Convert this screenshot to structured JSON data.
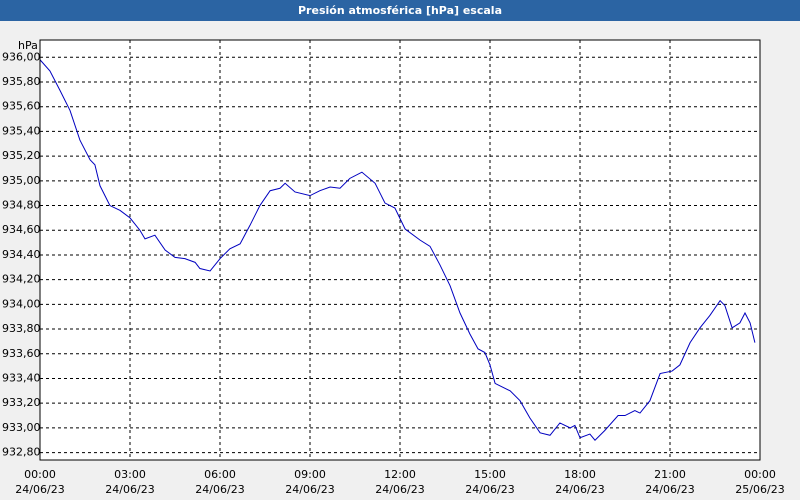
{
  "chart_data": {
    "type": "line",
    "title": "Presión atmosférica [hPa] escala",
    "y_unit": "hPa",
    "x": [
      0,
      0.33,
      0.67,
      1,
      1.33,
      1.67,
      1.83,
      2,
      2.33,
      2.67,
      3,
      3.33,
      3.5,
      3.83,
      4.17,
      4.5,
      4.83,
      5.17,
      5.33,
      5.67,
      6,
      6.33,
      6.67,
      7,
      7.33,
      7.67,
      8,
      8.17,
      8.5,
      9,
      9.33,
      9.67,
      10,
      10.33,
      10.73,
      11.17,
      11.5,
      11.83,
      12.17,
      12.67,
      13,
      13.33,
      13.67,
      14,
      14.33,
      14.6,
      14.83,
      15,
      15.17,
      15.67,
      16,
      16.33,
      16.67,
      17,
      17.33,
      17.67,
      17.83,
      18,
      18.33,
      18.5,
      18.83,
      19.27,
      19.5,
      19.83,
      20,
      20.33,
      20.67,
      21.07,
      21.33,
      21.67,
      22,
      22.33,
      22.67,
      22.83,
      23.07,
      23.33,
      23.5,
      23.67,
      23.83
    ],
    "series": [
      {
        "color": "#0000c0",
        "values": [
          935.98,
          935.89,
          935.73,
          935.57,
          935.33,
          935.17,
          935.13,
          934.96,
          934.8,
          934.76,
          934.7,
          934.6,
          934.53,
          934.56,
          934.44,
          934.38,
          934.37,
          934.34,
          934.29,
          934.27,
          934.37,
          934.45,
          934.49,
          934.64,
          934.8,
          934.92,
          934.94,
          934.98,
          934.91,
          934.88,
          934.92,
          934.95,
          934.94,
          935.02,
          935.07,
          934.98,
          934.82,
          934.78,
          934.61,
          934.52,
          934.47,
          934.32,
          934.15,
          933.93,
          933.76,
          933.64,
          933.61,
          933.51,
          933.36,
          933.3,
          933.22,
          933.08,
          932.96,
          932.94,
          933.04,
          933.0,
          933.02,
          932.92,
          932.95,
          932.9,
          932.98,
          933.1,
          933.1,
          933.14,
          933.12,
          933.22,
          933.44,
          933.46,
          933.51,
          933.69,
          933.81,
          933.91,
          934.03,
          933.99,
          933.81,
          933.85,
          933.93,
          933.85,
          933.69
        ]
      }
    ],
    "xlim": [
      0,
      24
    ],
    "xticks": [
      {
        "value": 0,
        "label": "00:00"
      },
      {
        "value": 3,
        "label": "03:00"
      },
      {
        "value": 6,
        "label": "06:00"
      },
      {
        "value": 9,
        "label": "09:00"
      },
      {
        "value": 12,
        "label": "12:00"
      },
      {
        "value": 15,
        "label": "15:00"
      },
      {
        "value": 18,
        "label": "18:00"
      },
      {
        "value": 21,
        "label": "21:00"
      },
      {
        "value": 24,
        "label": "00:00"
      }
    ],
    "xtick_dates": [
      "24/06/23",
      "24/06/23",
      "24/06/23",
      "24/06/23",
      "24/06/23",
      "24/06/23",
      "24/06/23",
      "24/06/23",
      "25/06/23"
    ],
    "ylim": [
      932.74,
      936.14
    ],
    "yticks": [
      {
        "value": 932.8,
        "label": "932,80"
      },
      {
        "value": 933,
        "label": "933,00"
      },
      {
        "value": 933.2,
        "label": "933,20"
      },
      {
        "value": 933.4,
        "label": "933,40"
      },
      {
        "value": 933.6,
        "label": "933,60"
      },
      {
        "value": 933.8,
        "label": "933,80"
      },
      {
        "value": 934,
        "label": "934,00"
      },
      {
        "value": 934.2,
        "label": "934,20"
      },
      {
        "value": 934.4,
        "label": "934,40"
      },
      {
        "value": 934.6,
        "label": "934,60"
      },
      {
        "value": 934.8,
        "label": "934,80"
      },
      {
        "value": 935,
        "label": "935,00"
      },
      {
        "value": 935.2,
        "label": "935,20"
      },
      {
        "value": 935.4,
        "label": "935,40"
      },
      {
        "value": 935.6,
        "label": "935,60"
      },
      {
        "value": 935.8,
        "label": "935,80"
      },
      {
        "value": 936,
        "label": "936,00"
      }
    ],
    "grid": true
  }
}
